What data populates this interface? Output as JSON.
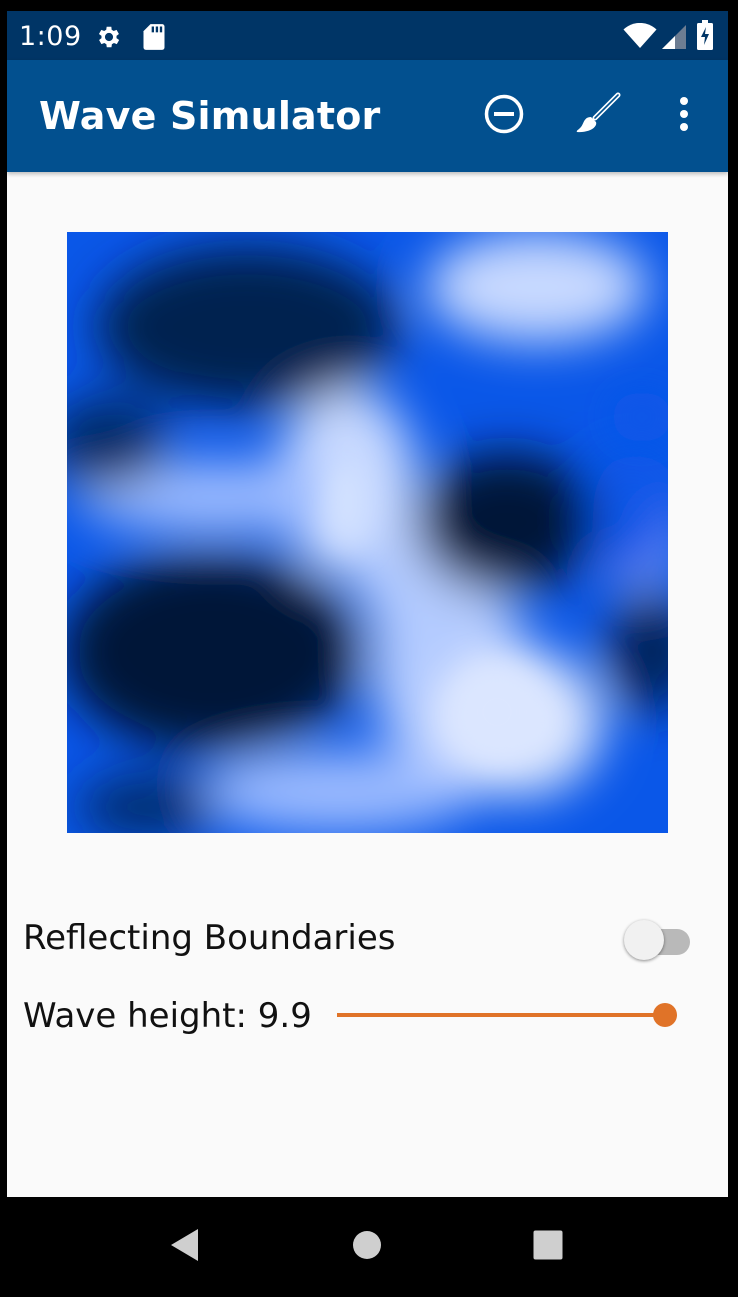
{
  "status_bar": {
    "time": "1:09",
    "icons": [
      "gear-icon",
      "sd-card-icon",
      "wifi-icon",
      "signal-icon",
      "battery-charging-icon"
    ]
  },
  "app_bar": {
    "title": "Wave Simulator",
    "actions": [
      "remove-circle-icon",
      "brush-icon",
      "more-vert-icon"
    ]
  },
  "simulation": {
    "palette": [
      "#031a44",
      "#0a57e8",
      "#d2e1ff"
    ]
  },
  "settings": {
    "reflecting_label": "Reflecting Boundaries",
    "reflecting_enabled": false,
    "wave_height_label": "Wave height: 9.9",
    "wave_height_fraction": 1.0
  },
  "nav_bar": {
    "buttons": [
      "back-icon",
      "home-icon",
      "recents-icon"
    ]
  },
  "colors": {
    "status_bar": "#003566",
    "app_bar": "#02508f",
    "accent": "#e07328"
  }
}
